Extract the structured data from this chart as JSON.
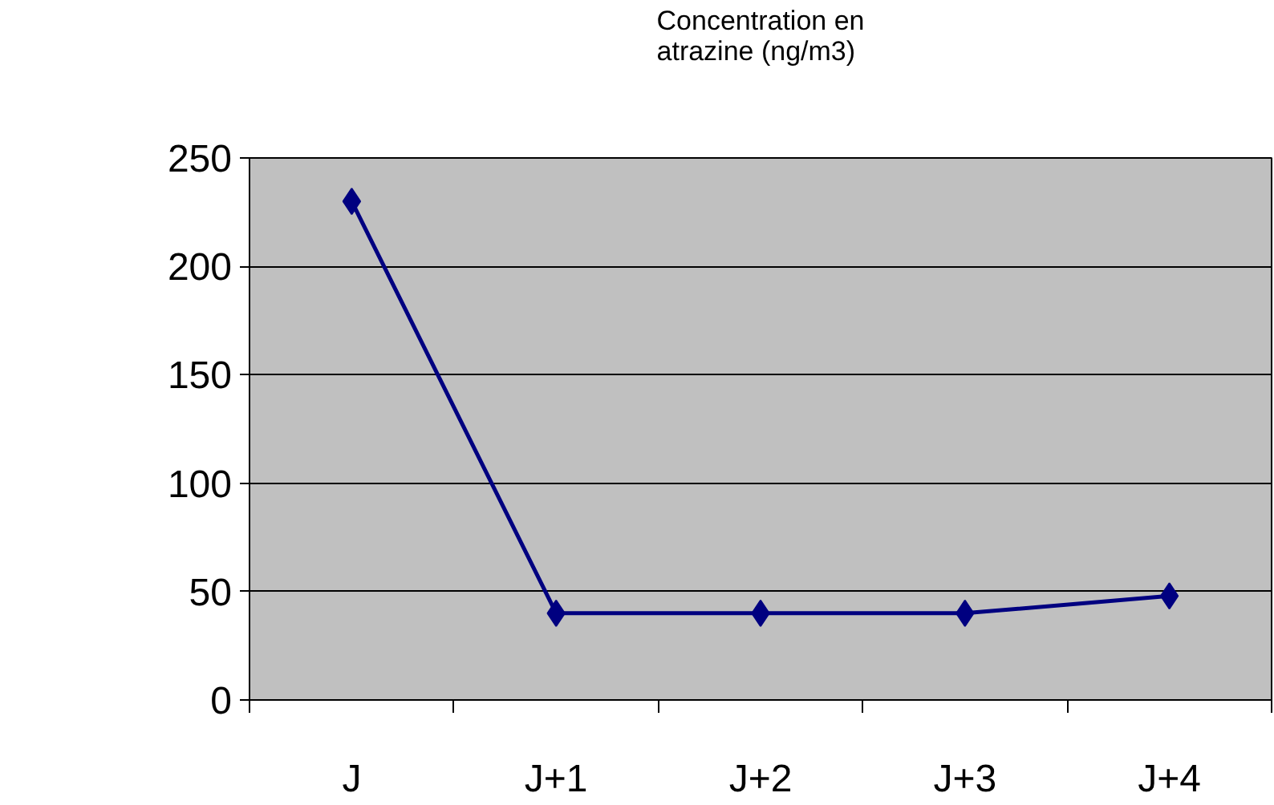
{
  "chart_data": {
    "type": "line",
    "ylabel": "Concentration en atrazine (ng/m3)",
    "categories": [
      "J",
      "J+1",
      "J+2",
      "J+3",
      "J+4"
    ],
    "series": [
      {
        "color": "#000080",
        "values": [
          230,
          40,
          40,
          40,
          48
        ]
      }
    ],
    "ylim": [
      0,
      250
    ],
    "yticks": [
      0,
      50,
      100,
      150,
      200,
      250
    ],
    "grid": "y",
    "marker": "diamond",
    "line_style": "solid"
  }
}
